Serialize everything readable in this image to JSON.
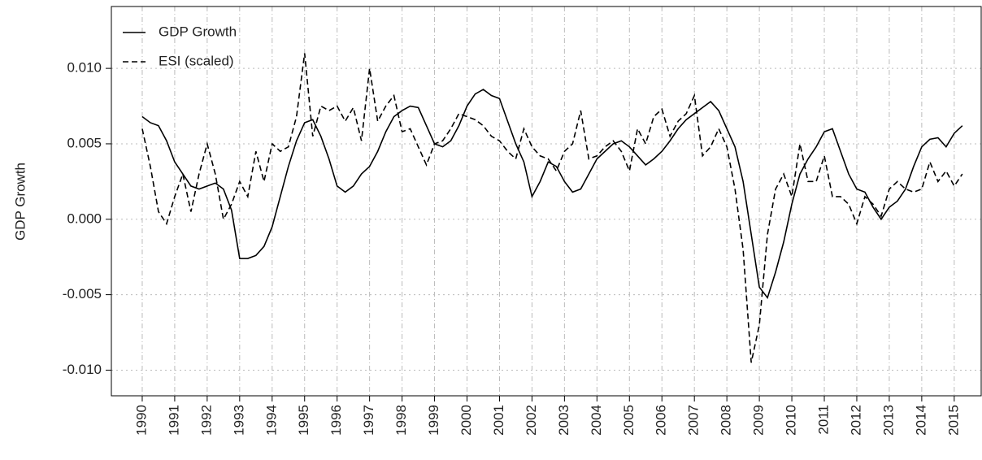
{
  "chart_data": {
    "type": "line",
    "ylabel": "GDP Growth",
    "x": [
      1990,
      1990.25,
      1990.5,
      1990.75,
      1991,
      1991.25,
      1991.5,
      1991.75,
      1992,
      1992.25,
      1992.5,
      1992.75,
      1993,
      1993.25,
      1993.5,
      1993.75,
      1994,
      1994.25,
      1994.5,
      1994.75,
      1995,
      1995.25,
      1995.5,
      1995.75,
      1996,
      1996.25,
      1996.5,
      1996.75,
      1997,
      1997.25,
      1997.5,
      1997.75,
      1998,
      1998.25,
      1998.5,
      1998.75,
      1999,
      1999.25,
      1999.5,
      1999.75,
      2000,
      2000.25,
      2000.5,
      2000.75,
      2001,
      2001.25,
      2001.5,
      2001.75,
      2002,
      2002.25,
      2002.5,
      2002.75,
      2003,
      2003.25,
      2003.5,
      2003.75,
      2004,
      2004.25,
      2004.5,
      2004.75,
      2005,
      2005.25,
      2005.5,
      2005.75,
      2006,
      2006.25,
      2006.5,
      2006.75,
      2007,
      2007.25,
      2007.5,
      2007.75,
      2008,
      2008.25,
      2008.5,
      2008.75,
      2009,
      2009.25,
      2009.5,
      2009.75,
      2010,
      2010.25,
      2010.5,
      2010.75,
      2011,
      2011.25,
      2011.5,
      2011.75,
      2012,
      2012.25,
      2012.5,
      2012.75,
      2013,
      2013.25,
      2013.5,
      2013.75,
      2014,
      2014.25,
      2014.5,
      2014.75,
      2015,
      2015.25
    ],
    "series": [
      {
        "name": "GDP Growth",
        "color": "#000000",
        "style": "solid",
        "values": [
          0.0068,
          0.0064,
          0.0062,
          0.0052,
          0.0038,
          0.003,
          0.0022,
          0.002,
          0.0022,
          0.0024,
          0.002,
          0.0006,
          -0.0026,
          -0.0026,
          -0.0024,
          -0.0018,
          -0.0005,
          0.0015,
          0.0035,
          0.0052,
          0.0064,
          0.0066,
          0.0055,
          0.004,
          0.0022,
          0.0018,
          0.0022,
          0.003,
          0.0035,
          0.0045,
          0.0058,
          0.0068,
          0.0072,
          0.0075,
          0.0074,
          0.0062,
          0.005,
          0.0048,
          0.0052,
          0.0062,
          0.0075,
          0.0083,
          0.0086,
          0.0082,
          0.008,
          0.0065,
          0.005,
          0.0038,
          0.0015,
          0.0025,
          0.0038,
          0.0035,
          0.0025,
          0.0018,
          0.002,
          0.003,
          0.004,
          0.0045,
          0.005,
          0.0052,
          0.0048,
          0.0042,
          0.0036,
          0.004,
          0.0045,
          0.0052,
          0.006,
          0.0066,
          0.007,
          0.0074,
          0.0078,
          0.0072,
          0.006,
          0.0048,
          0.0025,
          -0.001,
          -0.0045,
          -0.0052,
          -0.0035,
          -0.0015,
          0.001,
          0.003,
          0.004,
          0.0048,
          0.0058,
          0.006,
          0.0045,
          0.003,
          0.002,
          0.0018,
          0.0008,
          0,
          0.0008,
          0.0012,
          0.002,
          0.0035,
          0.0048,
          0.0053,
          0.0054,
          0.0048,
          0.0057,
          0.0062
        ]
      },
      {
        "name": "ESI (scaled)",
        "color": "#000000",
        "style": "dashed",
        "values": [
          0.006,
          0.0035,
          0.0005,
          -0.0003,
          0.0015,
          0.003,
          0.0005,
          0.003,
          0.005,
          0.003,
          0,
          0.001,
          0.0025,
          0.0015,
          0.0045,
          0.0025,
          0.005,
          0.0045,
          0.0048,
          0.0068,
          0.011,
          0.0055,
          0.0075,
          0.0072,
          0.0075,
          0.0065,
          0.0074,
          0.0052,
          0.01,
          0.0065,
          0.0075,
          0.0082,
          0.0058,
          0.006,
          0.0048,
          0.0036,
          0.005,
          0.0052,
          0.006,
          0.007,
          0.0068,
          0.0066,
          0.0062,
          0.0055,
          0.0052,
          0.0045,
          0.004,
          0.006,
          0.0048,
          0.0042,
          0.004,
          0.0032,
          0.0045,
          0.005,
          0.0072,
          0.004,
          0.0042,
          0.0048,
          0.0052,
          0.0045,
          0.0032,
          0.006,
          0.005,
          0.0068,
          0.0073,
          0.0055,
          0.0065,
          0.007,
          0.0082,
          0.0042,
          0.0048,
          0.006,
          0.0048,
          0.002,
          -0.002,
          -0.0095,
          -0.007,
          -0.001,
          0.002,
          0.003,
          0.0015,
          0.005,
          0.0025,
          0.0025,
          0.0042,
          0.0015,
          0.0015,
          0.001,
          -0.0003,
          0.0015,
          0.001,
          0.0002,
          0.002,
          0.0025,
          0.002,
          0.0018,
          0.002,
          0.0038,
          0.0025,
          0.0032,
          0.0022,
          0.003
        ]
      }
    ],
    "xlim": [
      1989.05,
      2015.83
    ],
    "ylim": [
      -0.0117,
      0.0141
    ],
    "xticks": [
      1990,
      1991,
      1992,
      1993,
      1994,
      1995,
      1996,
      1997,
      1998,
      1999,
      2000,
      2001,
      2002,
      2003,
      2004,
      2005,
      2006,
      2007,
      2008,
      2009,
      2010,
      2011,
      2012,
      2013,
      2014,
      2015
    ],
    "yticks": [
      {
        "value": -0.01,
        "label": "-0.010"
      },
      -0.005,
      {
        "value": 0,
        "label": "0.000"
      },
      0.005,
      {
        "value": 0.01,
        "label": "0.010"
      }
    ],
    "grid": true,
    "legend": "top-left"
  }
}
